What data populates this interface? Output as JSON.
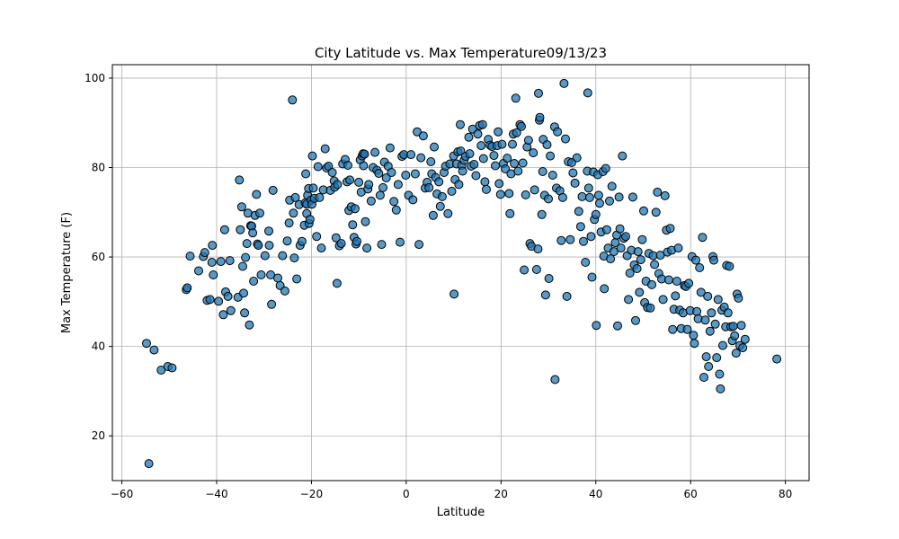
{
  "chart_data": {
    "type": "scatter",
    "title": "City Latitude vs. Max Temperature09/13/23",
    "xlabel": "Latitude",
    "ylabel": "Max Temperature (F)",
    "xlim": [
      -62,
      85
    ],
    "ylim": [
      10,
      103
    ],
    "xticks": [
      -60,
      -40,
      -20,
      0,
      20,
      40,
      60,
      80
    ],
    "yticks": [
      20,
      40,
      60,
      80,
      100
    ],
    "grid": true,
    "marker_color": "#1f77b4",
    "edge_color": "#000000",
    "points": [
      [
        -54.8,
        40.7
      ],
      [
        -53.2,
        39.2
      ],
      [
        -51.7,
        34.7
      ],
      [
        -50.3,
        35.5
      ],
      [
        -49.4,
        35.2
      ],
      [
        -54.3,
        13.8
      ],
      [
        -46.4,
        52.7
      ],
      [
        -46.2,
        53.1
      ],
      [
        -45.6,
        60.2
      ],
      [
        -43.8,
        56.9
      ],
      [
        -42.8,
        60.1
      ],
      [
        -42.5,
        61.0
      ],
      [
        -42.0,
        50.3
      ],
      [
        -41.4,
        50.5
      ],
      [
        -41.0,
        58.8
      ],
      [
        -40.9,
        62.6
      ],
      [
        -40.7,
        56.0
      ],
      [
        -39.6,
        50.1
      ],
      [
        -39.1,
        59.0
      ],
      [
        -38.6,
        47.1
      ],
      [
        -38.3,
        66.1
      ],
      [
        -38.1,
        52.2
      ],
      [
        -37.6,
        51.2
      ],
      [
        -37.2,
        59.2
      ],
      [
        -37.0,
        48.0
      ],
      [
        -35.5,
        51.0
      ],
      [
        -35.2,
        77.2
      ],
      [
        -35.0,
        66.1
      ],
      [
        -34.7,
        71.2
      ],
      [
        -34.5,
        57.9
      ],
      [
        -34.3,
        51.9
      ],
      [
        -34.1,
        47.5
      ],
      [
        -33.9,
        59.9
      ],
      [
        -33.6,
        63.0
      ],
      [
        -33.4,
        69.8
      ],
      [
        -33.1,
        44.8
      ],
      [
        -32.8,
        67.0
      ],
      [
        -32.6,
        66.9
      ],
      [
        -32.4,
        65.4
      ],
      [
        -32.2,
        54.6
      ],
      [
        -31.9,
        69.3
      ],
      [
        -31.6,
        74.0
      ],
      [
        -31.4,
        62.9
      ],
      [
        -31.2,
        62.6
      ],
      [
        -30.9,
        69.8
      ],
      [
        -30.6,
        56.0
      ],
      [
        -29.8,
        60.3
      ],
      [
        -29.0,
        65.8
      ],
      [
        -28.9,
        62.6
      ],
      [
        -28.6,
        56.0
      ],
      [
        -28.4,
        49.4
      ],
      [
        -28.1,
        74.9
      ],
      [
        -27.1,
        55.3
      ],
      [
        -26.6,
        53.6
      ],
      [
        -26.1,
        60.3
      ],
      [
        -25.6,
        52.4
      ],
      [
        -25.1,
        63.6
      ],
      [
        -24.7,
        67.6
      ],
      [
        -24.6,
        72.7
      ],
      [
        -24.0,
        95.1
      ],
      [
        -23.8,
        69.8
      ],
      [
        -23.6,
        59.8
      ],
      [
        -23.4,
        73.3
      ],
      [
        -23.1,
        55.1
      ],
      [
        -22.6,
        71.7
      ],
      [
        -22.4,
        62.6
      ],
      [
        -22.0,
        63.5
      ],
      [
        -21.5,
        67.1
      ],
      [
        -21.3,
        72.1
      ],
      [
        -21.2,
        78.6
      ],
      [
        -21.0,
        71.8
      ],
      [
        -21.0,
        69.7
      ],
      [
        -20.8,
        73.8
      ],
      [
        -20.6,
        75.3
      ],
      [
        -20.5,
        67.5
      ],
      [
        -20.3,
        68.4
      ],
      [
        -20.1,
        72.7
      ],
      [
        -19.9,
        71.8
      ],
      [
        -19.8,
        82.6
      ],
      [
        -19.6,
        75.4
      ],
      [
        -19.4,
        73.1
      ],
      [
        -18.9,
        64.6
      ],
      [
        -18.6,
        80.2
      ],
      [
        -18.3,
        73.3
      ],
      [
        -17.9,
        62.0
      ],
      [
        -17.5,
        75.0
      ],
      [
        -17.1,
        84.2
      ],
      [
        -16.8,
        79.9
      ],
      [
        -16.4,
        80.3
      ],
      [
        -16.0,
        74.9
      ],
      [
        -15.6,
        78.9
      ],
      [
        -15.2,
        77.0
      ],
      [
        -15.1,
        75.6
      ],
      [
        -14.8,
        64.3
      ],
      [
        -14.6,
        54.1
      ],
      [
        -14.5,
        76.2
      ],
      [
        -14.1,
        62.5
      ],
      [
        -13.7,
        63.0
      ],
      [
        -13.4,
        80.8
      ],
      [
        -12.9,
        81.8
      ],
      [
        -12.5,
        76.8
      ],
      [
        -12.3,
        80.5
      ],
      [
        -12.1,
        70.4
      ],
      [
        -11.9,
        77.2
      ],
      [
        -11.6,
        71.2
      ],
      [
        -11.3,
        67.2
      ],
      [
        -11.0,
        64.4
      ],
      [
        -10.8,
        70.8
      ],
      [
        -10.6,
        62.9
      ],
      [
        -10.4,
        63.5
      ],
      [
        -10.0,
        76.7
      ],
      [
        -9.7,
        81.7
      ],
      [
        -9.5,
        74.5
      ],
      [
        -9.3,
        82.6
      ],
      [
        -9.1,
        83.1
      ],
      [
        -9.0,
        80.4
      ],
      [
        -8.8,
        83.0
      ],
      [
        -8.6,
        67.9
      ],
      [
        -8.3,
        62.0
      ],
      [
        -8.1,
        75.2
      ],
      [
        -7.9,
        76.2
      ],
      [
        -7.4,
        72.5
      ],
      [
        -7.0,
        80.0
      ],
      [
        -6.6,
        83.4
      ],
      [
        -6.2,
        79.4
      ],
      [
        -5.8,
        78.7
      ],
      [
        -5.5,
        73.8
      ],
      [
        -5.2,
        62.8
      ],
      [
        -4.9,
        75.5
      ],
      [
        -4.6,
        81.2
      ],
      [
        -4.2,
        77.7
      ],
      [
        -3.8,
        80.3
      ],
      [
        -3.4,
        84.4
      ],
      [
        -3.1,
        78.9
      ],
      [
        -2.6,
        72.4
      ],
      [
        -2.1,
        70.5
      ],
      [
        -1.7,
        76.2
      ],
      [
        -1.3,
        63.3
      ],
      [
        -0.9,
        82.5
      ],
      [
        -0.5,
        82.9
      ],
      [
        -0.1,
        78.3
      ],
      [
        0.5,
        73.8
      ],
      [
        1.0,
        82.9
      ],
      [
        1.4,
        72.8
      ],
      [
        1.9,
        78.6
      ],
      [
        2.3,
        88.0
      ],
      [
        2.7,
        62.8
      ],
      [
        3.1,
        82.2
      ],
      [
        3.6,
        87.1
      ],
      [
        4.0,
        75.4
      ],
      [
        4.4,
        76.7
      ],
      [
        4.8,
        75.5
      ],
      [
        5.2,
        81.3
      ],
      [
        5.4,
        78.6
      ],
      [
        5.7,
        69.3
      ],
      [
        5.9,
        84.6
      ],
      [
        6.2,
        77.8
      ],
      [
        6.5,
        74.1
      ],
      [
        6.9,
        76.8
      ],
      [
        7.2,
        71.3
      ],
      [
        7.6,
        73.5
      ],
      [
        8.0,
        78.9
      ],
      [
        8.3,
        80.3
      ],
      [
        8.8,
        69.7
      ],
      [
        9.2,
        80.8
      ],
      [
        9.6,
        74.7
      ],
      [
        10.0,
        82.6
      ],
      [
        10.1,
        51.7
      ],
      [
        10.3,
        77.3
      ],
      [
        10.6,
        80.8
      ],
      [
        10.9,
        83.5
      ],
      [
        11.1,
        76.2
      ],
      [
        11.4,
        89.6
      ],
      [
        11.5,
        83.7
      ],
      [
        11.7,
        80.5
      ],
      [
        11.9,
        79.2
      ],
      [
        12.2,
        81.6
      ],
      [
        12.5,
        82.5
      ],
      [
        13.2,
        86.8
      ],
      [
        13.4,
        83.1
      ],
      [
        13.7,
        80.3
      ],
      [
        14.0,
        88.6
      ],
      [
        14.3,
        80.7
      ],
      [
        14.7,
        78.2
      ],
      [
        15.1,
        87.5
      ],
      [
        15.5,
        89.4
      ],
      [
        15.8,
        84.9
      ],
      [
        16.1,
        89.6
      ],
      [
        16.3,
        82.0
      ],
      [
        16.6,
        76.8
      ],
      [
        16.9,
        75.1
      ],
      [
        17.3,
        86.3
      ],
      [
        17.7,
        85.0
      ],
      [
        18.1,
        84.7
      ],
      [
        18.5,
        82.7
      ],
      [
        18.8,
        80.4
      ],
      [
        19.2,
        84.9
      ],
      [
        19.4,
        88.0
      ],
      [
        19.6,
        76.4
      ],
      [
        19.9,
        74.0
      ],
      [
        20.2,
        85.2
      ],
      [
        20.5,
        80.9
      ],
      [
        20.9,
        79.7
      ],
      [
        21.3,
        82.1
      ],
      [
        21.7,
        74.2
      ],
      [
        21.9,
        69.7
      ],
      [
        22.1,
        78.6
      ],
      [
        22.4,
        85.2
      ],
      [
        22.6,
        87.5
      ],
      [
        22.8,
        80.9
      ],
      [
        23.1,
        95.5
      ],
      [
        23.3,
        87.8
      ],
      [
        23.6,
        79.2
      ],
      [
        24.0,
        89.6
      ],
      [
        24.3,
        89.2
      ],
      [
        24.6,
        81.0
      ],
      [
        24.9,
        57.1
      ],
      [
        25.2,
        73.9
      ],
      [
        25.5,
        84.6
      ],
      [
        25.8,
        86.1
      ],
      [
        26.1,
        63.0
      ],
      [
        26.4,
        62.4
      ],
      [
        26.8,
        83.3
      ],
      [
        27.1,
        75.0
      ],
      [
        27.5,
        57.2
      ],
      [
        27.8,
        61.8
      ],
      [
        27.9,
        96.6
      ],
      [
        28.1,
        90.6
      ],
      [
        28.2,
        91.2
      ],
      [
        28.6,
        69.5
      ],
      [
        28.8,
        79.1
      ],
      [
        28.9,
        86.3
      ],
      [
        29.2,
        73.8
      ],
      [
        29.4,
        51.5
      ],
      [
        29.7,
        85.1
      ],
      [
        30.0,
        73.0
      ],
      [
        30.1,
        55.2
      ],
      [
        30.4,
        82.6
      ],
      [
        30.9,
        78.3
      ],
      [
        31.3,
        89.1
      ],
      [
        31.4,
        32.6
      ],
      [
        31.7,
        75.4
      ],
      [
        31.9,
        88.0
      ],
      [
        32.4,
        74.8
      ],
      [
        32.7,
        63.7
      ],
      [
        33.0,
        73.3
      ],
      [
        33.3,
        98.8
      ],
      [
        33.6,
        86.4
      ],
      [
        33.9,
        51.2
      ],
      [
        34.2,
        81.3
      ],
      [
        34.6,
        63.9
      ],
      [
        34.9,
        81.1
      ],
      [
        35.2,
        78.8
      ],
      [
        35.6,
        76.5
      ],
      [
        36.0,
        82.2
      ],
      [
        36.4,
        70.2
      ],
      [
        36.8,
        66.8
      ],
      [
        37.1,
        73.5
      ],
      [
        37.4,
        63.5
      ],
      [
        37.8,
        58.8
      ],
      [
        38.2,
        79.2
      ],
      [
        38.3,
        96.7
      ],
      [
        38.5,
        75.4
      ],
      [
        38.7,
        73.3
      ],
      [
        39.0,
        64.6
      ],
      [
        39.2,
        55.5
      ],
      [
        39.5,
        79.0
      ],
      [
        39.7,
        68.4
      ],
      [
        40.0,
        69.5
      ],
      [
        40.1,
        44.7
      ],
      [
        40.4,
        78.4
      ],
      [
        40.6,
        73.8
      ],
      [
        40.8,
        72.0
      ],
      [
        41.1,
        65.6
      ],
      [
        41.5,
        79.1
      ],
      [
        41.7,
        60.2
      ],
      [
        41.8,
        52.9
      ],
      [
        42.1,
        79.8
      ],
      [
        42.3,
        66.1
      ],
      [
        42.6,
        62.0
      ],
      [
        42.9,
        72.5
      ],
      [
        43.1,
        59.6
      ],
      [
        43.4,
        75.8
      ],
      [
        43.8,
        61.2
      ],
      [
        44.1,
        63.2
      ],
      [
        44.4,
        64.9
      ],
      [
        44.6,
        44.6
      ],
      [
        44.9,
        73.4
      ],
      [
        45.1,
        66.3
      ],
      [
        45.3,
        62.0
      ],
      [
        45.6,
        82.6
      ],
      [
        45.9,
        64.2
      ],
      [
        46.3,
        64.6
      ],
      [
        46.6,
        60.3
      ],
      [
        46.9,
        50.5
      ],
      [
        47.2,
        56.4
      ],
      [
        47.5,
        61.5
      ],
      [
        47.8,
        73.4
      ],
      [
        48.1,
        58.2
      ],
      [
        48.4,
        45.8
      ],
      [
        48.7,
        57.4
      ],
      [
        48.9,
        61.2
      ],
      [
        49.2,
        52.1
      ],
      [
        49.5,
        59.4
      ],
      [
        49.8,
        63.9
      ],
      [
        50.1,
        70.3
      ],
      [
        50.3,
        49.8
      ],
      [
        50.6,
        54.6
      ],
      [
        50.9,
        48.7
      ],
      [
        51.2,
        60.8
      ],
      [
        51.5,
        48.6
      ],
      [
        51.8,
        53.8
      ],
      [
        52.1,
        60.3
      ],
      [
        52.4,
        58.3
      ],
      [
        52.7,
        70.0
      ],
      [
        53.0,
        74.5
      ],
      [
        53.3,
        56.3
      ],
      [
        53.6,
        60.4
      ],
      [
        53.9,
        55.1
      ],
      [
        54.2,
        50.5
      ],
      [
        54.6,
        73.7
      ],
      [
        54.9,
        66.0
      ],
      [
        55.1,
        61.1
      ],
      [
        55.4,
        54.9
      ],
      [
        55.7,
        66.4
      ],
      [
        56.0,
        61.5
      ],
      [
        56.2,
        43.8
      ],
      [
        56.5,
        48.3
      ],
      [
        56.8,
        51.3
      ],
      [
        57.1,
        54.6
      ],
      [
        57.4,
        62.0
      ],
      [
        57.7,
        48.1
      ],
      [
        58.0,
        44.0
      ],
      [
        58.4,
        47.5
      ],
      [
        58.7,
        53.6
      ],
      [
        59.0,
        53.4
      ],
      [
        59.3,
        43.8
      ],
      [
        59.6,
        54.1
      ],
      [
        59.9,
        48.0
      ],
      [
        60.3,
        60.1
      ],
      [
        60.6,
        42.5
      ],
      [
        60.8,
        40.7
      ],
      [
        61.1,
        59.3
      ],
      [
        61.3,
        47.8
      ],
      [
        61.6,
        46.2
      ],
      [
        61.9,
        57.6
      ],
      [
        62.2,
        52.1
      ],
      [
        62.5,
        64.4
      ],
      [
        62.8,
        33.1
      ],
      [
        63.1,
        45.9
      ],
      [
        63.3,
        37.7
      ],
      [
        63.6,
        51.2
      ],
      [
        63.8,
        35.5
      ],
      [
        64.1,
        43.4
      ],
      [
        64.4,
        47.5
      ],
      [
        64.7,
        60.1
      ],
      [
        64.9,
        59.3
      ],
      [
        65.2,
        45.0
      ],
      [
        65.5,
        37.5
      ],
      [
        65.8,
        50.5
      ],
      [
        66.1,
        33.8
      ],
      [
        66.3,
        30.5
      ],
      [
        66.6,
        48.1
      ],
      [
        66.8,
        40.2
      ],
      [
        67.1,
        48.8
      ],
      [
        67.4,
        44.4
      ],
      [
        67.6,
        58.1
      ],
      [
        67.9,
        47.5
      ],
      [
        68.2,
        57.9
      ],
      [
        68.5,
        44.4
      ],
      [
        68.8,
        41.3
      ],
      [
        69.0,
        44.5
      ],
      [
        69.3,
        42.4
      ],
      [
        69.6,
        38.5
      ],
      [
        69.8,
        51.7
      ],
      [
        70.1,
        50.8
      ],
      [
        70.4,
        40.2
      ],
      [
        70.7,
        44.7
      ],
      [
        71.0,
        39.7
      ],
      [
        71.5,
        41.6
      ],
      [
        78.2,
        37.2
      ]
    ]
  }
}
